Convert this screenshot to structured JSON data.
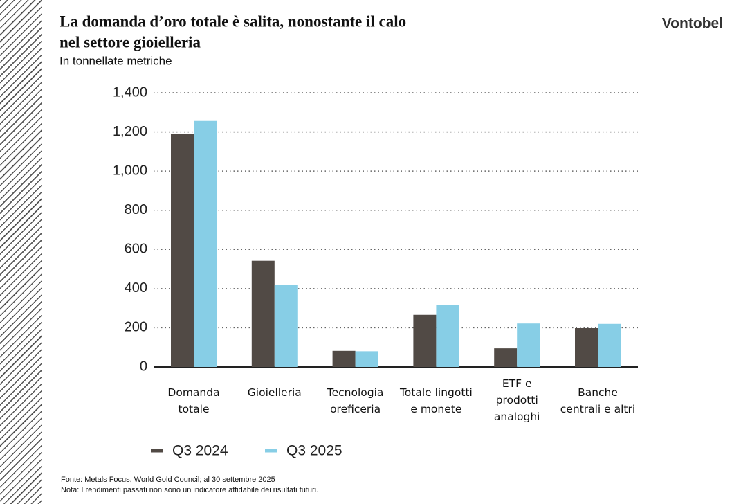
{
  "brand": "Vontobel",
  "chart_data": {
    "type": "bar",
    "title": [
      "La domanda d’oro totale è salita, nonostante il calo",
      "nel settore gioielleria"
    ],
    "subtitle": "In tonnellate metriche",
    "categories": [
      "Domanda\ntotale",
      "Gioielleria",
      "Tecnologia\noreficeria",
      "Totale lingotti\ne monete",
      "ETF e\nprodotti\nanaloghi",
      "Banche\ncentrali e altri"
    ],
    "series": [
      {
        "name": "Q3 2024",
        "color": "#514a45",
        "values": [
          1190,
          542,
          82,
          266,
          95,
          198
        ]
      },
      {
        "name": "Q3 2025",
        "color": "#87cee6",
        "values": [
          1256,
          418,
          80,
          315,
          222,
          220
        ]
      }
    ],
    "ylim": [
      0,
      1400
    ],
    "yticks": [
      0,
      200,
      400,
      600,
      800,
      {
        "value": 1000,
        "label": "1,000"
      },
      {
        "value": 1200,
        "label": "1,200"
      },
      {
        "value": 1400,
        "label": "1,400"
      }
    ],
    "grid": true,
    "legend": "bottom",
    "notes": [
      "Fonte: Metals Focus, World Gold Council; al 30 settembre 2025",
      "Nota: I rendimenti passati non sono un indicatore affidabile dei risultati futuri."
    ]
  }
}
